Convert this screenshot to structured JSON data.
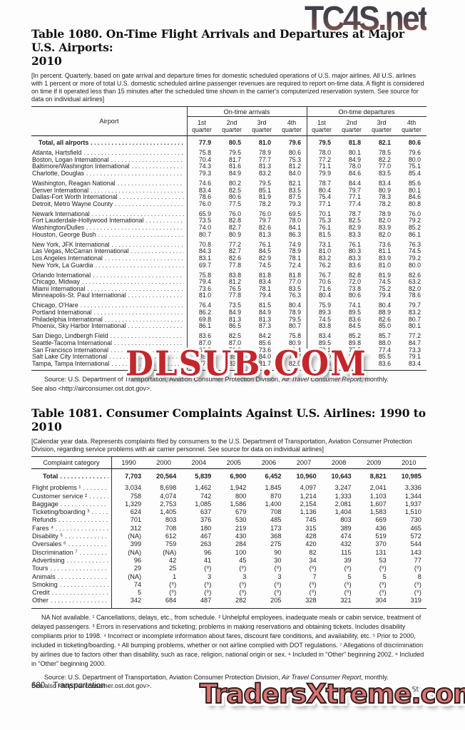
{
  "watermarks": {
    "top_right": "TC4S.net",
    "middle": "DLSUB.COM",
    "bottom": "TradersXtreme.com"
  },
  "page": {
    "footer_page_number": "680",
    "footer_section": "Transportation",
    "footer_right": "U.S. Census Bureau, Statistical Abstract of the United States: 2012"
  },
  "table1080": {
    "title_line1": "Table 1080. On-Time Flight Arrivals and Departures at Major U.S. Airports:",
    "title_line2": "2010",
    "headnote": "[In percent. Quarterly, based on gate arrival and departure times for domestic scheduled operations of U.S. major airlines. All U.S. airlines with 1 percent or more of total U.S. domestic scheduled airline passenger revenues are required to report on-time data. A flight is considered on time if it operated less than 15 minutes after the scheduled time shown in the carrier's computerized reservation system. See source for data on individual airlines]",
    "airport_header": "Airport",
    "group_headers": [
      "On-time arrivals",
      "On-time departures"
    ],
    "quarter_labels": [
      "1st quarter",
      "2nd quarter",
      "3rd quarter",
      "4th quarter"
    ],
    "total_row": {
      "label": "Total, all airports",
      "values": [
        "77.9",
        "80.5",
        "81.0",
        "79.6",
        "79.5",
        "81.8",
        "82.1",
        "80.6"
      ]
    },
    "groups": [
      [
        {
          "label": "Atlanta, Hartsfield",
          "values": [
            "75.8",
            "79.5",
            "78.9",
            "80.6",
            "78.0",
            "80.1",
            "78.5",
            "79.6"
          ]
        },
        {
          "label": "Boston, Logan International",
          "values": [
            "70.4",
            "81.7",
            "77.7",
            "75.3",
            "77.2",
            "84.9",
            "82.2",
            "80.0"
          ]
        },
        {
          "label": "Baltimore/Washington International",
          "values": [
            "74.3",
            "81.6",
            "81.3",
            "81.2",
            "71.1",
            "78.0",
            "77.0",
            "75.1"
          ]
        },
        {
          "label": "Charlotte, Douglas",
          "values": [
            "79.3",
            "84.9",
            "83.2",
            "84.0",
            "79.9",
            "84.6",
            "83.5",
            "85.4"
          ]
        }
      ],
      [
        {
          "label": "Washington, Reagan National",
          "values": [
            "74.6",
            "80.2",
            "79.5",
            "82.1",
            "78.7",
            "84.4",
            "83.4",
            "85.6"
          ]
        },
        {
          "label": "Denver International",
          "values": [
            "83.4",
            "82.5",
            "85.1",
            "83.5",
            "80.4",
            "79.7",
            "80.9",
            "80.1"
          ]
        },
        {
          "label": "Dallas-Fort Worth International",
          "values": [
            "78.6",
            "80.6",
            "81.9",
            "87.5",
            "75.4",
            "77.1",
            "78.3",
            "84.6"
          ]
        },
        {
          "label": "Detroit, Metro Wayne County",
          "values": [
            "76.0",
            "77.5",
            "78.2",
            "79.3",
            "77.1",
            "77.4",
            "78.2",
            "80.8"
          ]
        }
      ],
      [
        {
          "label": "Newark International",
          "values": [
            "65.9",
            "76.0",
            "76.0",
            "69.5",
            "70.1",
            "78.7",
            "78.9",
            "76.0"
          ]
        },
        {
          "label": "Fort Lauderdale-Hollywood International",
          "values": [
            "73.5",
            "82.8",
            "79.7",
            "78.0",
            "75.3",
            "82.5",
            "82.0",
            "79.2"
          ]
        },
        {
          "label": "Washington/Dulles",
          "values": [
            "74.0",
            "82.7",
            "82.6",
            "84.1",
            "76.1",
            "82.9",
            "83.9",
            "85.2"
          ]
        },
        {
          "label": "Houston, George Bush",
          "values": [
            "80.7",
            "80.9",
            "81.3",
            "86.3",
            "81.5",
            "83.3",
            "82.0",
            "86.1"
          ]
        }
      ],
      [
        {
          "label": "New York, JFK International",
          "values": [
            "70.8",
            "77.2",
            "76.1",
            "74.9",
            "73.1",
            "76.1",
            "73.6",
            "76.3"
          ]
        },
        {
          "label": "Las Vegas, McCarran International",
          "values": [
            "84.3",
            "82.7",
            "84.5",
            "78.9",
            "81.0",
            "80.3",
            "81.1",
            "74.5"
          ]
        },
        {
          "label": "Los Angeles International",
          "values": [
            "83.1",
            "82.6",
            "82.9",
            "78.1",
            "83.2",
            "83.3",
            "83.9",
            "79.2"
          ]
        },
        {
          "label": "New York, La Guardia",
          "values": [
            "69.7",
            "77.8",
            "74.5",
            "72.4",
            "76.2",
            "83.6",
            "81.0",
            "80.0"
          ]
        }
      ],
      [
        {
          "label": "Orlando International",
          "values": [
            "75.8",
            "83.8",
            "81.8",
            "81.8",
            "76.7",
            "82.8",
            "81.9",
            "82.6"
          ]
        },
        {
          "label": "Chicago, Midway",
          "values": [
            "79.4",
            "81.2",
            "83.4",
            "77.0",
            "70.6",
            "72.0",
            "74.5",
            "63.2"
          ]
        },
        {
          "label": "Miami International",
          "values": [
            "73.6",
            "76.5",
            "78.1",
            "83.5",
            "71.6",
            "73.8",
            "75.2",
            "82.0"
          ]
        },
        {
          "label": "Minneapolis-St. Paul International",
          "values": [
            "81.0",
            "77.8",
            "79.4",
            "76.3",
            "80.4",
            "80.6",
            "79.4",
            "78.6"
          ]
        }
      ],
      [
        {
          "label": "Chicago, O'Hare",
          "values": [
            "76.4",
            "73.5",
            "81.5",
            "80.4",
            "75.9",
            "74.1",
            "80.4",
            "79.7"
          ]
        },
        {
          "label": "Portland International",
          "values": [
            "86.2",
            "84.9",
            "84.9",
            "78.9",
            "89.3",
            "89.5",
            "88.9",
            "83.2"
          ]
        },
        {
          "label": "Philadelphia International",
          "values": [
            "69.8",
            "81.3",
            "81.3",
            "79.5",
            "74.5",
            "83.6",
            "82.6",
            "80.7"
          ]
        },
        {
          "label": "Phoenix, Sky Harbor International",
          "values": [
            "86.1",
            "86.5",
            "87.3",
            "80.7",
            "83.8",
            "84.5",
            "85.0",
            "80.1"
          ]
        }
      ],
      [
        {
          "label": "San Diego, Lindbergh Field",
          "values": [
            "83.6",
            "82.5",
            "84.2",
            "75.8",
            "83.4",
            "85.2",
            "85.7",
            "77.2"
          ]
        },
        {
          "label": "Seattle-Tacoma International",
          "values": [
            "87.0",
            "87.0",
            "85.6",
            "80.9",
            "89.5",
            "89.8",
            "88.0",
            "84.7"
          ]
        },
        {
          "label": "San Francisco International",
          "values": [
            "68.9",
            "73.2",
            "73.6",
            "69.4",
            "73.1",
            "77.5",
            "77.4",
            "73.3"
          ]
        },
        {
          "label": "Salt Lake City International",
          "values": [
            "85.8",
            "85.0",
            "84.0",
            "75.7",
            "88.0",
            "87.0",
            "85.5",
            "79.1"
          ]
        },
        {
          "label": "Tampa, Tampa International",
          "values": [
            "77.0",
            "83.2",
            "81.7",
            "82.0",
            "78.6",
            "84.3",
            "83.6",
            "83.4"
          ]
        }
      ]
    ],
    "source": {
      "pre": "Source: U.S. Department of Transportation, Aviation Consumer Protection Division, ",
      "italic": "Air Travel Consumer Report",
      "post": ", monthly."
    },
    "see_also": "See also <http://airconsumer.ost.dot.gov>."
  },
  "table1081": {
    "title": "Table 1081. Consumer Complaints Against U.S. Airlines: 1990 to 2010",
    "headnote": "[Calendar year data. Represents complaints filed by consumers to the U.S. Department of Transportation, Aviation Consumer Protection Division, regarding service problems with air carrier personnel. See source for data on individual airlines]",
    "category_header": "Complaint category",
    "year_headers": [
      "1990",
      "2000",
      "2004",
      "2005",
      "2006",
      "2007",
      "2008",
      "2009",
      "2010"
    ],
    "total_row": {
      "label": "Total",
      "values": [
        "7,703",
        "20,564",
        "5,839",
        "6,900",
        "6,452",
        "10,960",
        "10,643",
        "8,821",
        "10,985"
      ]
    },
    "rows": [
      {
        "label": "Flight problems ¹",
        "values": [
          "3,034",
          "8,698",
          "1,462",
          "1,942",
          "1,845",
          "4,097",
          "3,247",
          "2,041",
          "3,336"
        ]
      },
      {
        "label": "Customer service ²",
        "values": [
          "758",
          "4,074",
          "742",
          "800",
          "870",
          "1,214",
          "1,333",
          "1,103",
          "1,344"
        ]
      },
      {
        "label": "Baggage",
        "values": [
          "1,329",
          "2,753",
          "1,085",
          "1,586",
          "1,400",
          "2,154",
          "2,081",
          "1,607",
          "1,937"
        ]
      },
      {
        "label": "Ticketing/boarding ³",
        "values": [
          "624",
          "1,405",
          "637",
          "679",
          "708",
          "1,136",
          "1,404",
          "1,583",
          "1,510"
        ]
      },
      {
        "label": "Refunds",
        "values": [
          "701",
          "803",
          "376",
          "530",
          "485",
          "745",
          "803",
          "669",
          "730"
        ]
      },
      {
        "label": "Fares ⁴",
        "values": [
          "312",
          "708",
          "180",
          "219",
          "173",
          "315",
          "389",
          "436",
          "465"
        ]
      },
      {
        "label": "Disability ⁵",
        "values": [
          "(NA)",
          "612",
          "467",
          "430",
          "368",
          "428",
          "474",
          "519",
          "572"
        ]
      },
      {
        "label": "Oversales ⁶",
        "values": [
          "399",
          "759",
          "263",
          "284",
          "275",
          "420",
          "432",
          "370",
          "544"
        ]
      },
      {
        "label": "Discrimination ⁷",
        "values": [
          "(NA)",
          "(NA)",
          "96",
          "100",
          "90",
          "82",
          "115",
          "131",
          "143"
        ]
      },
      {
        "label": "Advertising",
        "values": [
          "96",
          "42",
          "41",
          "45",
          "30",
          "34",
          "39",
          "53",
          "77"
        ]
      },
      {
        "label": "Tours",
        "values": [
          "29",
          "25",
          "(⁸)",
          "(⁸)",
          "(⁸)",
          "(⁸)",
          "(⁸)",
          "(⁸)",
          "(⁸)"
        ]
      },
      {
        "label": "Animals",
        "values": [
          "(NA)",
          "1",
          "3",
          "3",
          "3",
          "7",
          "5",
          "5",
          "8"
        ]
      },
      {
        "label": "Smoking",
        "values": [
          "74",
          "(⁹)",
          "(⁹)",
          "(⁹)",
          "(⁹)",
          "(⁹)",
          "(⁹)",
          "(⁹)",
          "(⁹)"
        ]
      },
      {
        "label": "Credit",
        "values": [
          "5",
          "(⁹)",
          "(⁹)",
          "(⁹)",
          "(⁹)",
          "(⁹)",
          "(⁹)",
          "(⁹)",
          "(⁹)"
        ]
      },
      {
        "label": "Other",
        "values": [
          "342",
          "684",
          "487",
          "282",
          "205",
          "328",
          "321",
          "304",
          "319"
        ]
      }
    ],
    "footnotes": "NA Not available. ¹ Cancellations, delays, etc., from schedule. ² Unhelpful employees, inadequate meals or cabin service, treatment of delayed passengers. ³ Errors in reservations and ticketing; problems in making reservations and obtaining tickets. Includes disability compliants prior to 1998. ⁴ Incorrect or incomplete information about fares, discount fare conditions, and availability, etc. ⁵ Prior to 2000, included in ticketing/boarding. ⁶ All bumping problems, whether or not airline complied with DOT regulations. ⁷ Allegations of discrimination by airlines due to factors other than disability, such as race, religion, national origin or sex. ⁸ Included in “Other” beginning 2002. ⁹ Included in “Other” beginning 2000.",
    "source": {
      "pre": "Source: U.S. Department of Transportation, Aviation Consumer Protection Division, ",
      "italic": "Air Travel Consumer Report",
      "post": ", monthly."
    },
    "see_also": "See also <http://airconsumer.ost.dot.gov>."
  }
}
